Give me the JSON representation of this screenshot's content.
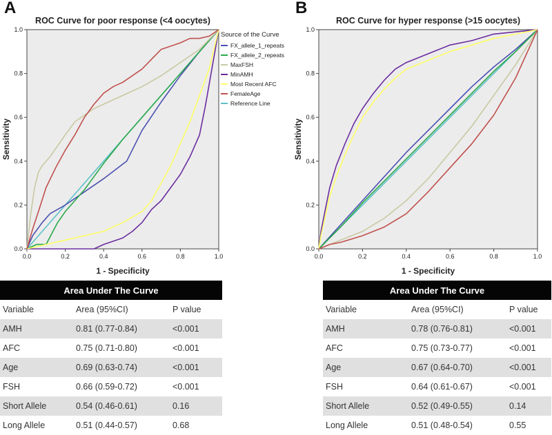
{
  "panels": [
    {
      "letter": "A"
    },
    {
      "letter": "B"
    }
  ],
  "chart_data": [
    {
      "type": "line",
      "title": "ROC Curve for poor response (<4 oocytes)",
      "xlabel": "1 - Specificity",
      "ylabel": "Sensitivity",
      "xlim": [
        0,
        1
      ],
      "ylim": [
        0,
        1
      ],
      "ticks": [
        "0.0",
        "0.2",
        "0.4",
        "0.6",
        "0.8",
        "1.0"
      ],
      "legend_title": "Source of the Curve",
      "legend_position": "right",
      "series": [
        {
          "name": "FX_allele_1_repeats",
          "color": "#4a4fb0",
          "x": [
            0,
            0.03,
            0.08,
            0.12,
            0.2,
            0.3,
            0.4,
            0.52,
            0.6,
            0.7,
            0.8,
            0.9,
            1.0
          ],
          "y": [
            0,
            0.06,
            0.12,
            0.16,
            0.2,
            0.26,
            0.32,
            0.4,
            0.54,
            0.67,
            0.79,
            0.9,
            1.0
          ]
        },
        {
          "name": "FX_allele_2_repeats",
          "color": "#2aa84a",
          "x": [
            0,
            0.05,
            0.1,
            0.13,
            0.16,
            0.2,
            0.25,
            0.3,
            0.4,
            0.5,
            0.6,
            0.7,
            0.8,
            0.9,
            1.0
          ],
          "y": [
            0,
            0.02,
            0.02,
            0.07,
            0.12,
            0.17,
            0.22,
            0.27,
            0.39,
            0.5,
            0.6,
            0.7,
            0.8,
            0.9,
            1.0
          ]
        },
        {
          "name": "MaxFSH",
          "color": "#c9c9a3",
          "x": [
            0,
            0.02,
            0.04,
            0.06,
            0.08,
            0.12,
            0.16,
            0.2,
            0.25,
            0.3,
            0.35,
            0.4,
            0.5,
            0.6,
            0.7,
            0.8,
            0.9,
            1.0
          ],
          "y": [
            0,
            0.16,
            0.28,
            0.35,
            0.38,
            0.42,
            0.47,
            0.52,
            0.58,
            0.61,
            0.64,
            0.66,
            0.7,
            0.74,
            0.79,
            0.85,
            0.91,
            1.0
          ]
        },
        {
          "name": "MinAMH",
          "color": "#6a2c9e",
          "x": [
            0,
            0.1,
            0.2,
            0.35,
            0.4,
            0.5,
            0.55,
            0.6,
            0.65,
            0.7,
            0.75,
            0.8,
            0.85,
            0.9,
            0.93,
            0.96,
            1.0
          ],
          "y": [
            0,
            0,
            0,
            0,
            0.02,
            0.05,
            0.08,
            0.12,
            0.18,
            0.22,
            0.28,
            0.34,
            0.42,
            0.52,
            0.65,
            0.8,
            1.0
          ]
        },
        {
          "name": "Most Recent AFC",
          "color": "#ffff66",
          "x": [
            0,
            0.1,
            0.2,
            0.3,
            0.4,
            0.5,
            0.6,
            0.65,
            0.7,
            0.75,
            0.8,
            0.85,
            0.9,
            0.95,
            1.0
          ],
          "y": [
            0,
            0.02,
            0.04,
            0.06,
            0.08,
            0.12,
            0.17,
            0.22,
            0.3,
            0.38,
            0.48,
            0.58,
            0.7,
            0.82,
            1.0
          ]
        },
        {
          "name": "FemaleAge",
          "color": "#c0504d",
          "x": [
            0,
            0.03,
            0.06,
            0.1,
            0.15,
            0.2,
            0.25,
            0.3,
            0.35,
            0.4,
            0.45,
            0.5,
            0.6,
            0.7,
            0.8,
            0.85,
            0.9,
            0.95,
            1.0
          ],
          "y": [
            0,
            0.09,
            0.17,
            0.28,
            0.37,
            0.45,
            0.52,
            0.6,
            0.66,
            0.71,
            0.74,
            0.76,
            0.82,
            0.91,
            0.94,
            0.96,
            0.96,
            0.97,
            1.0
          ]
        },
        {
          "name": "Reference Line",
          "color": "#5bc0c8",
          "x": [
            0,
            1
          ],
          "y": [
            0,
            1
          ]
        }
      ]
    },
    {
      "type": "line",
      "title": "ROC Curve for hyper response (>15 oocytes)",
      "xlabel": "1 - Specificity",
      "ylabel": "Sensitivity",
      "xlim": [
        0,
        1
      ],
      "ylim": [
        0,
        1
      ],
      "ticks": [
        "0.0",
        "0.2",
        "0.4",
        "0.6",
        "0.8",
        "1.0"
      ],
      "legend_position": "none",
      "series": [
        {
          "name": "FX_allele_1_repeats",
          "color": "#4a4fb0",
          "x": [
            0,
            0.1,
            0.2,
            0.3,
            0.4,
            0.5,
            0.6,
            0.7,
            0.8,
            0.9,
            1.0
          ],
          "y": [
            0,
            0.11,
            0.22,
            0.33,
            0.44,
            0.54,
            0.64,
            0.74,
            0.83,
            0.91,
            1.0
          ]
        },
        {
          "name": "FX_allele_2_repeats",
          "color": "#2aa84a",
          "x": [
            0,
            0.1,
            0.2,
            0.3,
            0.4,
            0.5,
            0.6,
            0.7,
            0.8,
            0.9,
            1.0
          ],
          "y": [
            0,
            0.1,
            0.21,
            0.31,
            0.41,
            0.51,
            0.61,
            0.71,
            0.81,
            0.9,
            1.0
          ]
        },
        {
          "name": "MaxFSH",
          "color": "#c9c9a3",
          "x": [
            0,
            0.05,
            0.1,
            0.2,
            0.3,
            0.4,
            0.5,
            0.6,
            0.7,
            0.8,
            0.9,
            1.0
          ],
          "y": [
            0,
            0.02,
            0.04,
            0.08,
            0.14,
            0.22,
            0.32,
            0.44,
            0.56,
            0.7,
            0.84,
            1.0
          ]
        },
        {
          "name": "MinAMH",
          "color": "#6a2c9e",
          "x": [
            0,
            0.01,
            0.03,
            0.05,
            0.08,
            0.12,
            0.16,
            0.2,
            0.25,
            0.3,
            0.35,
            0.4,
            0.5,
            0.6,
            0.7,
            0.8,
            0.9,
            1.0
          ],
          "y": [
            0,
            0.08,
            0.18,
            0.28,
            0.38,
            0.48,
            0.57,
            0.64,
            0.71,
            0.77,
            0.82,
            0.85,
            0.89,
            0.93,
            0.95,
            0.98,
            0.99,
            1.0
          ]
        },
        {
          "name": "Most Recent AFC",
          "color": "#ffff66",
          "x": [
            0,
            0.01,
            0.03,
            0.05,
            0.08,
            0.12,
            0.16,
            0.2,
            0.25,
            0.3,
            0.35,
            0.4,
            0.5,
            0.6,
            0.7,
            0.8,
            0.9,
            1.0
          ],
          "y": [
            0,
            0.06,
            0.15,
            0.24,
            0.33,
            0.43,
            0.52,
            0.6,
            0.67,
            0.73,
            0.78,
            0.82,
            0.86,
            0.9,
            0.93,
            0.96,
            0.98,
            1.0
          ]
        },
        {
          "name": "FemaleAge",
          "color": "#c0504d",
          "x": [
            0,
            0.05,
            0.1,
            0.2,
            0.3,
            0.4,
            0.5,
            0.6,
            0.7,
            0.8,
            0.9,
            1.0
          ],
          "y": [
            0,
            0.02,
            0.03,
            0.06,
            0.1,
            0.16,
            0.26,
            0.37,
            0.48,
            0.61,
            0.78,
            1.0
          ]
        },
        {
          "name": "Reference Line",
          "color": "#5bc0c8",
          "x": [
            0,
            1
          ],
          "y": [
            0,
            1
          ]
        }
      ]
    }
  ],
  "tables": [
    {
      "caption": "Area Under The Curve",
      "headers": [
        "Variable",
        "Area (95%CI)",
        "P value"
      ],
      "rows": [
        [
          "AMH",
          "0.81 (0.77-0.84)",
          "<0.001"
        ],
        [
          "AFC",
          "0.75 (0.71-0.80)",
          "<0.001"
        ],
        [
          "Age",
          "0.69 (0.63-0.74)",
          "<0.001"
        ],
        [
          "FSH",
          "0.66 (0.59-0.72)",
          "<0.001"
        ],
        [
          "Short Allele",
          "0.54 (0.46-0.61)",
          "0.16"
        ],
        [
          "Long Allele",
          "0.51 (0.44-0.57)",
          "0.68"
        ]
      ]
    },
    {
      "caption": "Area Under The Curve",
      "headers": [
        "Variable",
        "Area (95%CI)",
        "P value"
      ],
      "rows": [
        [
          "AMH",
          "0.78 (0.76-0.81)",
          "<0.001"
        ],
        [
          "AFC",
          "0.75 (0.73-0.77)",
          "<0.001"
        ],
        [
          "Age",
          "0.67 (0.64-0.70)",
          "<0.001"
        ],
        [
          "FSH",
          "0.64 (0.61-0.67)",
          "<0.001"
        ],
        [
          "Short Allele",
          "0.52 (0.49-0.55)",
          "0.14"
        ],
        [
          "Long Allele",
          "0.51 (0.48-0.54)",
          "0.55"
        ]
      ]
    }
  ]
}
